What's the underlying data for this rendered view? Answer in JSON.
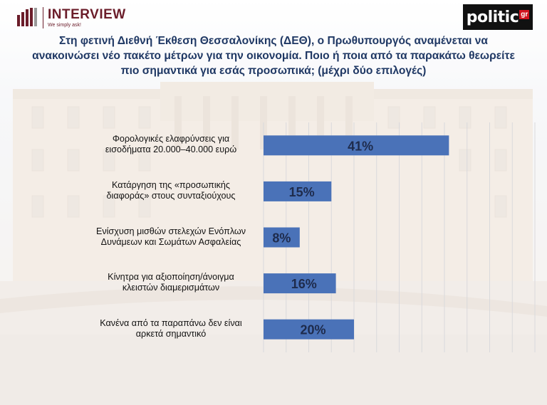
{
  "header": {
    "interview_brand": "INTERVIEW",
    "interview_tagline": "We simply ask!",
    "politic_brand": "politic",
    "politic_suffix": "gr"
  },
  "question": "Στη φετινή Διεθνή Έκθεση Θεσσαλονίκης (ΔΕΘ), ο Πρωθυπουργός αναμένεται να ανακοινώσει νέο πακέτο μέτρων για την οικονομία. Ποιο ή ποια από τα παρακάτω θεωρείτε πιο σημαντικά για εσάς προσωπικά; (μέχρι δύο επιλογές)",
  "colors": {
    "bar": "#4a72b8",
    "question_text": "#1f3864",
    "brand": "#6b1d2a"
  },
  "chart_data": {
    "type": "bar",
    "orientation": "horizontal",
    "categories": [
      "Φορολογικές ελαφρύνσεις για εισοδήματα 20.000–40.000 ευρώ",
      "Κατάργηση της «προσωπικής διαφοράς» στους συνταξιούχους",
      "Ενίσχυση μισθών στελεχών Ενόπλων Δυνάμεων και Σωμάτων Ασφαλείας",
      "Κίνητρα για αξιοποίηση/άνοιγμα κλειστών διαμερισμάτων",
      "Κανένα από τα παραπάνω δεν είναι αρκετά σημαντικό"
    ],
    "category_lines": [
      [
        "Φορολογικές ελαφρύνσεις για",
        "εισοδήματα 20.000–40.000 ευρώ"
      ],
      [
        "Κατάργηση της «προσωπικής",
        "διαφοράς» στους συνταξιούχους"
      ],
      [
        "Ενίσχυση μισθών στελεχών Ενόπλων",
        "Δυνάμεων και Σωμάτων Ασφαλείας"
      ],
      [
        "Κίνητρα για αξιοποίηση/άνοιγμα",
        "κλειστών διαμερισμάτων"
      ],
      [
        "Κανένα από τα παραπάνω δεν είναι",
        "αρκετά σημαντικό"
      ]
    ],
    "values": [
      41,
      15,
      8,
      16,
      20
    ],
    "value_labels": [
      "41%",
      "15%",
      "8%",
      "16%",
      "20%"
    ],
    "xlim": [
      0,
      60
    ],
    "grid": true
  }
}
